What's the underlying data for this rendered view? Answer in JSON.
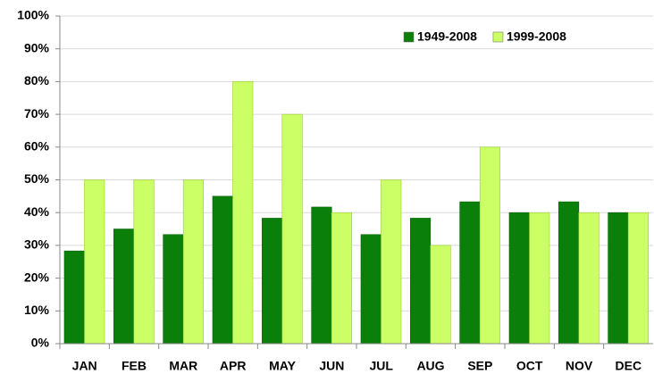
{
  "chart_data": {
    "type": "bar",
    "categories": [
      "JAN",
      "FEB",
      "MAR",
      "APR",
      "MAY",
      "JUN",
      "JUL",
      "AUG",
      "SEP",
      "OCT",
      "NOV",
      "DEC"
    ],
    "series": [
      {
        "name": "1949-2008",
        "color": "#0a800a",
        "values": [
          28.3,
          35,
          33.3,
          45,
          38.3,
          41.7,
          33.3,
          38.3,
          43.3,
          40,
          43.3,
          40
        ]
      },
      {
        "name": "1999-2008",
        "color": "#ccff66",
        "values": [
          50,
          50,
          50,
          80,
          70,
          40,
          50,
          30,
          60,
          40,
          40,
          40
        ]
      }
    ],
    "ylim": [
      0,
      100
    ],
    "yticks": [
      {
        "value": 0,
        "label": "0%"
      },
      {
        "value": 10,
        "label": "10%"
      },
      {
        "value": 20,
        "label": "20%"
      },
      {
        "value": 30,
        "label": "30%"
      },
      {
        "value": 40,
        "label": "40%"
      },
      {
        "value": 50,
        "label": "50%"
      },
      {
        "value": 60,
        "label": "60%"
      },
      {
        "value": 70,
        "label": "70%"
      },
      {
        "value": 80,
        "label": "80%"
      },
      {
        "value": 90,
        "label": "90%"
      },
      {
        "value": 100,
        "label": "100%"
      }
    ],
    "grid": true,
    "legend": "top-right"
  }
}
